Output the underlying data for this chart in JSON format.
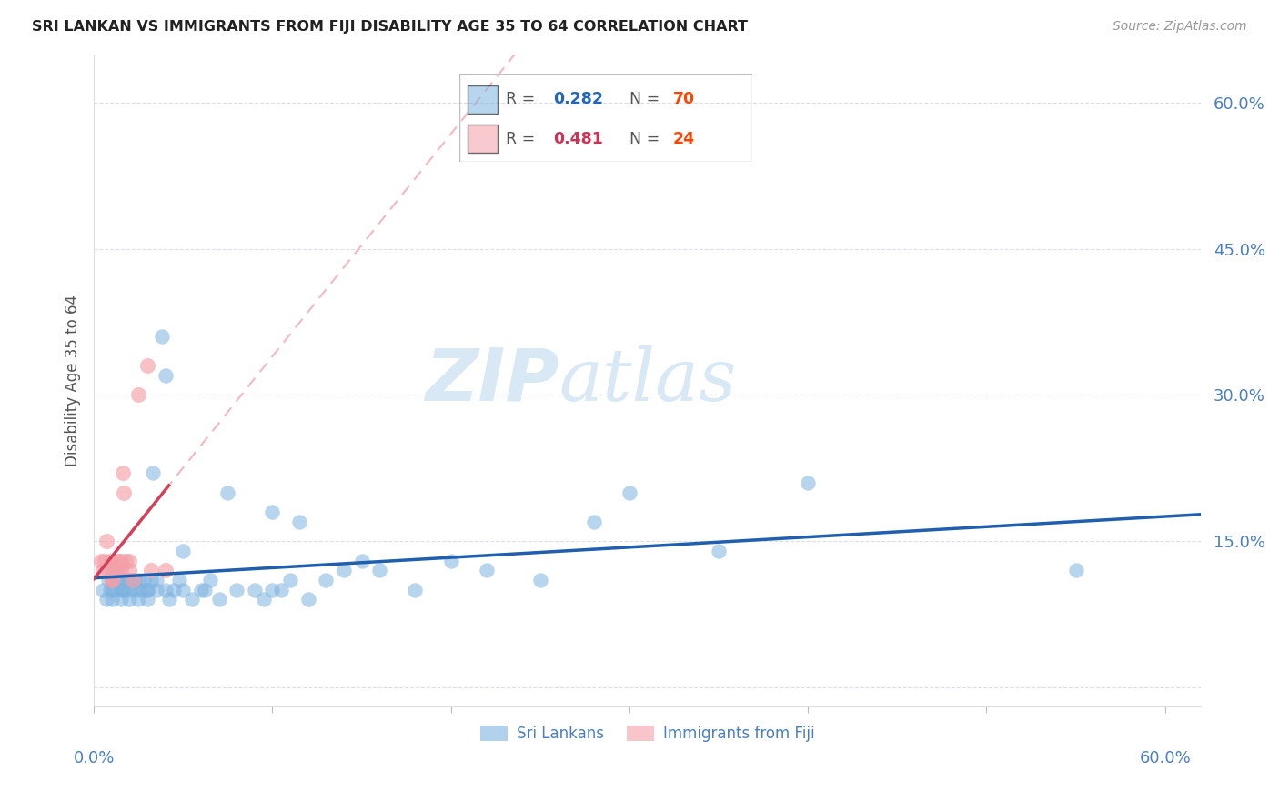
{
  "title": "SRI LANKAN VS IMMIGRANTS FROM FIJI DISABILITY AGE 35 TO 64 CORRELATION CHART",
  "source": "Source: ZipAtlas.com",
  "ylabel": "Disability Age 35 to 64",
  "legend1_R": "0.282",
  "legend1_N": "70",
  "legend2_R": "0.481",
  "legend2_N": "24",
  "blue_color": "#7EB3E0",
  "pink_color": "#F4A0A8",
  "trendline_blue_solid": "#1F5FAD",
  "trendline_pink_solid": "#D43F5A",
  "trendline_blue_dashed": "#AACCEE",
  "trendline_pink_dashed": "#F5B8C0",
  "axis_label_color": "#4A7FC1",
  "grid_color": "#DDDDEE",
  "title_color": "#222222",
  "source_color": "#999999",
  "watermark_color": "#D8E8F5",
  "legend_N_color": "#FF4400",
  "legend_R_blue": "#2266BB",
  "legend_R_pink": "#CC3355",
  "sri_lankans_x": [
    0.005,
    0.007,
    0.008,
    0.009,
    0.01,
    0.01,
    0.01,
    0.01,
    0.012,
    0.013,
    0.014,
    0.015,
    0.015,
    0.015,
    0.016,
    0.017,
    0.018,
    0.02,
    0.02,
    0.02,
    0.022,
    0.023,
    0.025,
    0.025,
    0.025,
    0.027,
    0.028,
    0.03,
    0.03,
    0.03,
    0.032,
    0.033,
    0.035,
    0.035,
    0.038,
    0.04,
    0.04,
    0.042,
    0.045,
    0.048,
    0.05,
    0.05,
    0.055,
    0.06,
    0.062,
    0.065,
    0.07,
    0.075,
    0.08,
    0.09,
    0.095,
    0.1,
    0.1,
    0.105,
    0.11,
    0.115,
    0.12,
    0.13,
    0.14,
    0.15,
    0.16,
    0.18,
    0.2,
    0.22,
    0.25,
    0.28,
    0.3,
    0.35,
    0.4,
    0.55
  ],
  "sri_lankans_y": [
    0.1,
    0.09,
    0.11,
    0.1,
    0.1,
    0.11,
    0.12,
    0.09,
    0.1,
    0.11,
    0.12,
    0.1,
    0.11,
    0.09,
    0.1,
    0.1,
    0.11,
    0.1,
    0.11,
    0.09,
    0.1,
    0.11,
    0.1,
    0.09,
    0.11,
    0.1,
    0.11,
    0.1,
    0.1,
    0.09,
    0.11,
    0.22,
    0.1,
    0.11,
    0.36,
    0.1,
    0.32,
    0.09,
    0.1,
    0.11,
    0.1,
    0.14,
    0.09,
    0.1,
    0.1,
    0.11,
    0.09,
    0.2,
    0.1,
    0.1,
    0.09,
    0.1,
    0.18,
    0.1,
    0.11,
    0.17,
    0.09,
    0.11,
    0.12,
    0.13,
    0.12,
    0.1,
    0.13,
    0.12,
    0.11,
    0.17,
    0.2,
    0.14,
    0.21,
    0.12
  ],
  "fiji_x": [
    0.004,
    0.005,
    0.006,
    0.007,
    0.008,
    0.009,
    0.01,
    0.01,
    0.01,
    0.012,
    0.013,
    0.014,
    0.015,
    0.015,
    0.016,
    0.017,
    0.018,
    0.02,
    0.02,
    0.022,
    0.025,
    0.03,
    0.032,
    0.04
  ],
  "fiji_y": [
    0.13,
    0.12,
    0.13,
    0.15,
    0.12,
    0.13,
    0.11,
    0.12,
    0.11,
    0.13,
    0.12,
    0.13,
    0.12,
    0.13,
    0.22,
    0.2,
    0.13,
    0.12,
    0.13,
    0.11,
    0.3,
    0.33,
    0.12,
    0.12
  ],
  "xlim_min": 0.0,
  "xlim_max": 0.62,
  "ylim_min": -0.02,
  "ylim_max": 0.65,
  "ytick_vals": [
    0.0,
    0.15,
    0.3,
    0.45,
    0.6
  ],
  "ytick_labels": [
    "",
    "15.0%",
    "30.0%",
    "45.0%",
    "60.0%"
  ]
}
